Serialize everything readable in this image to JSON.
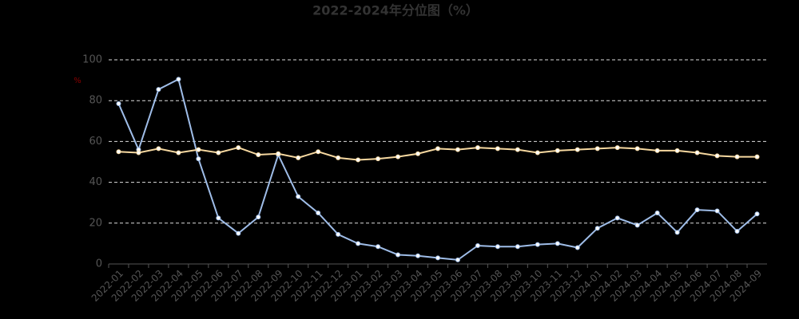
{
  "chart_data": {
    "type": "line",
    "title": "2022-2024年分位图（%）",
    "y_label": "%",
    "categories": [
      "2022-01",
      "2022-02",
      "2022-03",
      "2022-04",
      "2022-05",
      "2022-06",
      "2022-07",
      "2022-08",
      "2022-09",
      "2022-10",
      "2022-11",
      "2022-12",
      "2023-01",
      "2023-02",
      "2023-03",
      "2023-04",
      "2023-05",
      "2023-06",
      "2023-07",
      "2023-08",
      "2023-09",
      "2023-10",
      "2023-11",
      "2023-12",
      "2024-01",
      "2024-02",
      "2024-03",
      "2024-04",
      "2024-05",
      "2024-06",
      "2024-07",
      "2024-08",
      "2024-09"
    ],
    "series": [
      {
        "color": "#9fbde8",
        "values": [
          78.5,
          56,
          85.5,
          90.5,
          51.5,
          22.5,
          15,
          23,
          53.5,
          33,
          25,
          14.5,
          10,
          8.5,
          4.5,
          4,
          3,
          2,
          9,
          8.5,
          8.5,
          9.5,
          10,
          8,
          17.5,
          22.5,
          19,
          25,
          15.5,
          26.5,
          26,
          16,
          24.5
        ]
      },
      {
        "color": "#f6d8a0",
        "values": [
          55,
          54.5,
          56.5,
          54.5,
          56,
          54.5,
          57,
          53.5,
          54,
          52,
          55,
          52,
          51,
          51.5,
          52.5,
          54,
          56.5,
          56,
          57,
          56.5,
          56,
          54.5,
          55.5,
          56,
          56.5,
          57,
          56.5,
          55.5,
          55.5,
          54.5,
          53,
          52.5,
          52.5
        ]
      }
    ],
    "ylim": [
      0,
      100
    ],
    "yticks": [
      0,
      20,
      40,
      60,
      80,
      100
    ],
    "grid": true
  }
}
